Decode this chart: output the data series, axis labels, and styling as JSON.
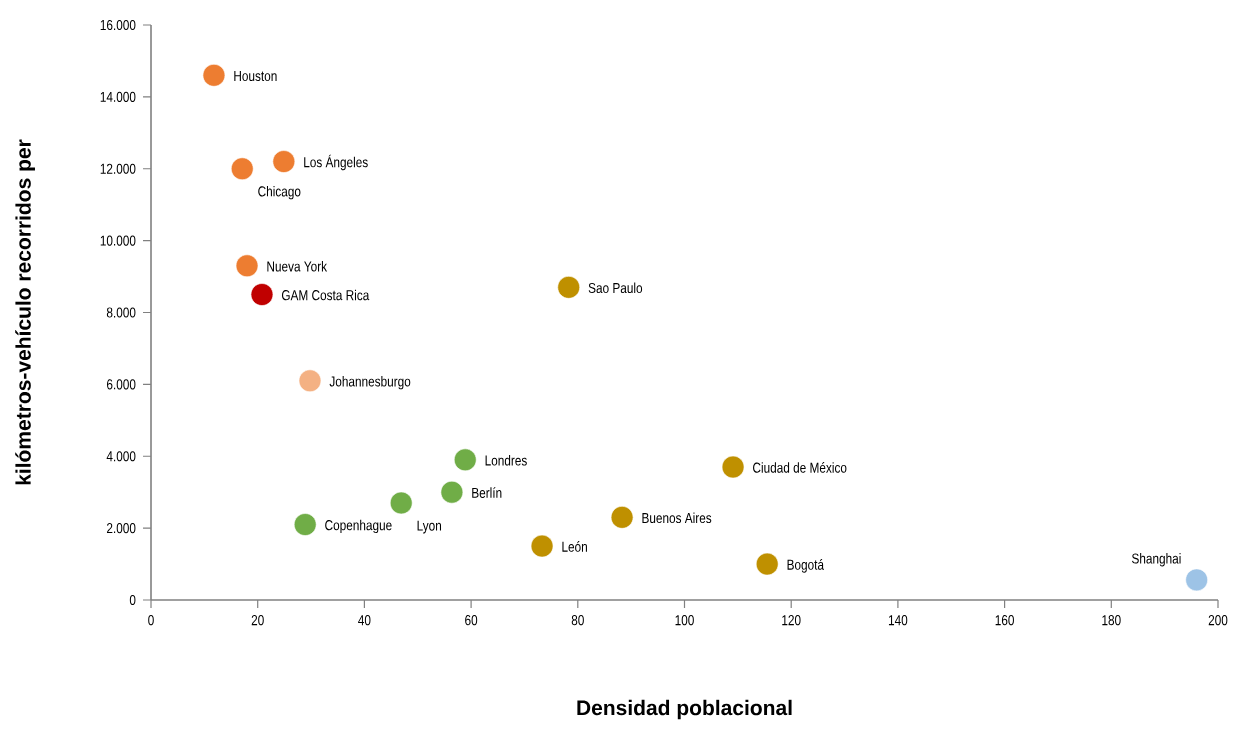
{
  "chart_data": {
    "type": "scatter",
    "xlabel": "Densidad poblacional",
    "ylabel": "kilómetros-vehículo recorridos per",
    "xlim": [
      0,
      200
    ],
    "xticks": [
      0,
      20,
      40,
      60,
      80,
      100,
      120,
      140,
      160,
      180,
      200
    ],
    "ylim": [
      0,
      16000
    ],
    "yticks": [
      {
        "value": 0,
        "label": "0"
      },
      {
        "value": 2000,
        "label": "2.000"
      },
      {
        "value": 4000,
        "label": "4.000"
      },
      {
        "value": 6000,
        "label": "6.000"
      },
      {
        "value": 8000,
        "label": "8.000"
      },
      {
        "value": 10000,
        "label": "10.000"
      },
      {
        "value": 12000,
        "label": "12.000"
      },
      {
        "value": 14000,
        "label": "14.000"
      },
      {
        "value": 16000,
        "label": "16.000"
      }
    ],
    "legend": false,
    "grid": false,
    "series": [
      {
        "name": "Houston",
        "color": "#ed7d31",
        "x": [
          11.8
        ],
        "values": [
          14600
        ]
      },
      {
        "name": "Los Ángeles",
        "color": "#ed7d31",
        "x": [
          24.9
        ],
        "values": [
          12200
        ]
      },
      {
        "name": "Chicago",
        "color": "#ed7d31",
        "x": [
          17.1
        ],
        "values": [
          12000
        ]
      },
      {
        "name": "Nueva York",
        "color": "#ed7d31",
        "x": [
          18
        ],
        "values": [
          9300
        ]
      },
      {
        "name": "GAM Costa Rica",
        "color": "#c00000",
        "x": [
          20.8
        ],
        "values": [
          8500
        ]
      },
      {
        "name": "Johannesburgo",
        "color": "#f4b183",
        "x": [
          29.8
        ],
        "values": [
          6100
        ]
      },
      {
        "name": "Sao Paulo",
        "color": "#bf9000",
        "x": [
          78.3
        ],
        "values": [
          8700
        ]
      },
      {
        "name": "Londres",
        "color": "#70ad47",
        "x": [
          58.9
        ],
        "values": [
          3900
        ]
      },
      {
        "name": "Berlín",
        "color": "#70ad47",
        "x": [
          56.4
        ],
        "values": [
          3000
        ]
      },
      {
        "name": "Lyon",
        "color": "#70ad47",
        "x": [
          46.9
        ],
        "values": [
          2700
        ]
      },
      {
        "name": "Copenhague",
        "color": "#70ad47",
        "x": [
          28.9
        ],
        "values": [
          2100
        ]
      },
      {
        "name": "León",
        "color": "#bf9000",
        "x": [
          73.3
        ],
        "values": [
          1500
        ]
      },
      {
        "name": "Buenos Aires",
        "color": "#bf9000",
        "x": [
          88.3
        ],
        "values": [
          2300
        ]
      },
      {
        "name": "Ciudad de México",
        "color": "#bf9000",
        "x": [
          109.1
        ],
        "values": [
          3700
        ]
      },
      {
        "name": "Bogotá",
        "color": "#bf9000",
        "x": [
          115.5
        ],
        "values": [
          1000
        ]
      },
      {
        "name": "Shanghai",
        "color": "#9dc3e6",
        "x": [
          196
        ],
        "values": [
          560
        ]
      }
    ]
  }
}
